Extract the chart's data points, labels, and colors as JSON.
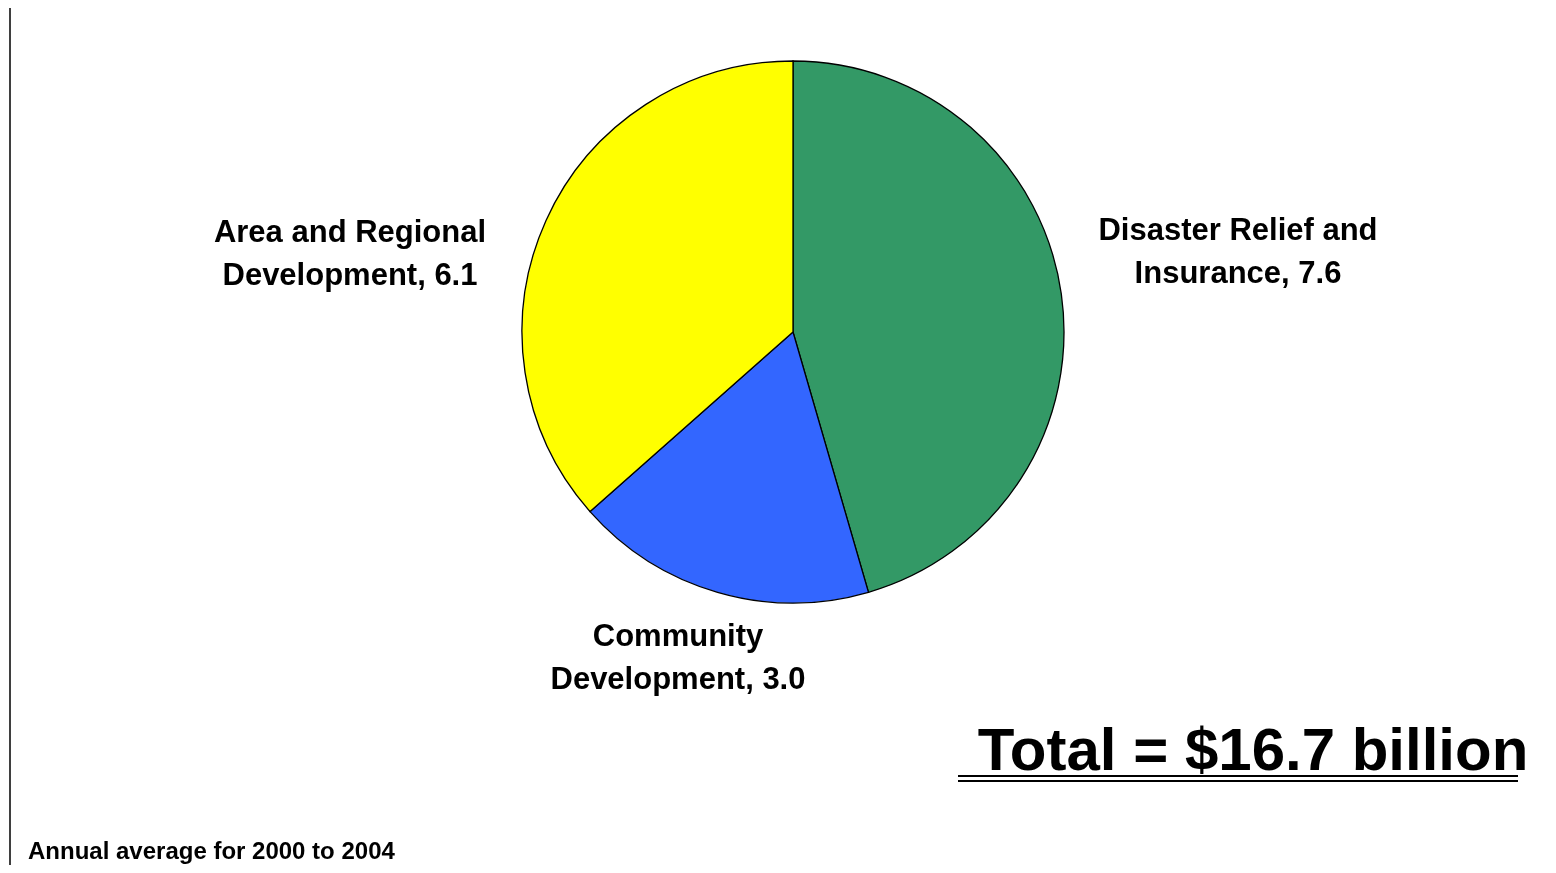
{
  "chart_data": {
    "type": "pie",
    "categories": [
      "Disaster Relief and Insurance",
      "Community Development",
      "Area and Regional Development"
    ],
    "values": [
      7.6,
      3.0,
      6.1
    ],
    "value_labels": [
      "7.6",
      "3.0",
      "6.1"
    ],
    "colors": [
      "#339966",
      "#3366ff",
      "#ffff00"
    ],
    "annotations": [
      "Total = $16.7 billion",
      "Annual average for 2000 to 2004"
    ],
    "legend": false
  }
}
